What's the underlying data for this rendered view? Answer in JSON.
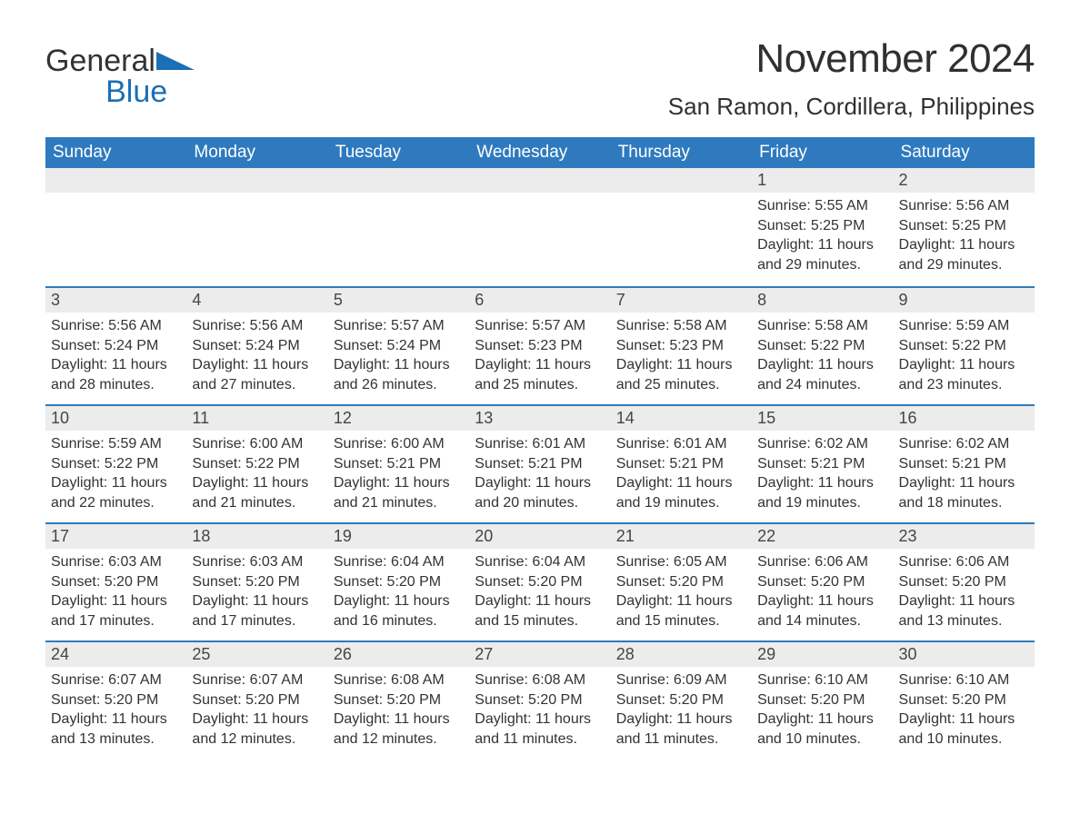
{
  "logo": {
    "word1": "General",
    "word2": "Blue",
    "accent_color": "#1a6fb5"
  },
  "title": "November 2024",
  "location": "San Ramon, Cordillera, Philippines",
  "header_bg": "#2f7abf",
  "daybar_bg": "#ececec",
  "weekdays": [
    "Sunday",
    "Monday",
    "Tuesday",
    "Wednesday",
    "Thursday",
    "Friday",
    "Saturday"
  ],
  "weeks": [
    [
      null,
      null,
      null,
      null,
      null,
      {
        "n": 1,
        "sr": "5:55 AM",
        "ss": "5:25 PM",
        "dl": "11 hours and 29 minutes."
      },
      {
        "n": 2,
        "sr": "5:56 AM",
        "ss": "5:25 PM",
        "dl": "11 hours and 29 minutes."
      }
    ],
    [
      {
        "n": 3,
        "sr": "5:56 AM",
        "ss": "5:24 PM",
        "dl": "11 hours and 28 minutes."
      },
      {
        "n": 4,
        "sr": "5:56 AM",
        "ss": "5:24 PM",
        "dl": "11 hours and 27 minutes."
      },
      {
        "n": 5,
        "sr": "5:57 AM",
        "ss": "5:24 PM",
        "dl": "11 hours and 26 minutes."
      },
      {
        "n": 6,
        "sr": "5:57 AM",
        "ss": "5:23 PM",
        "dl": "11 hours and 25 minutes."
      },
      {
        "n": 7,
        "sr": "5:58 AM",
        "ss": "5:23 PM",
        "dl": "11 hours and 25 minutes."
      },
      {
        "n": 8,
        "sr": "5:58 AM",
        "ss": "5:22 PM",
        "dl": "11 hours and 24 minutes."
      },
      {
        "n": 9,
        "sr": "5:59 AM",
        "ss": "5:22 PM",
        "dl": "11 hours and 23 minutes."
      }
    ],
    [
      {
        "n": 10,
        "sr": "5:59 AM",
        "ss": "5:22 PM",
        "dl": "11 hours and 22 minutes."
      },
      {
        "n": 11,
        "sr": "6:00 AM",
        "ss": "5:22 PM",
        "dl": "11 hours and 21 minutes."
      },
      {
        "n": 12,
        "sr": "6:00 AM",
        "ss": "5:21 PM",
        "dl": "11 hours and 21 minutes."
      },
      {
        "n": 13,
        "sr": "6:01 AM",
        "ss": "5:21 PM",
        "dl": "11 hours and 20 minutes."
      },
      {
        "n": 14,
        "sr": "6:01 AM",
        "ss": "5:21 PM",
        "dl": "11 hours and 19 minutes."
      },
      {
        "n": 15,
        "sr": "6:02 AM",
        "ss": "5:21 PM",
        "dl": "11 hours and 19 minutes."
      },
      {
        "n": 16,
        "sr": "6:02 AM",
        "ss": "5:21 PM",
        "dl": "11 hours and 18 minutes."
      }
    ],
    [
      {
        "n": 17,
        "sr": "6:03 AM",
        "ss": "5:20 PM",
        "dl": "11 hours and 17 minutes."
      },
      {
        "n": 18,
        "sr": "6:03 AM",
        "ss": "5:20 PM",
        "dl": "11 hours and 17 minutes."
      },
      {
        "n": 19,
        "sr": "6:04 AM",
        "ss": "5:20 PM",
        "dl": "11 hours and 16 minutes."
      },
      {
        "n": 20,
        "sr": "6:04 AM",
        "ss": "5:20 PM",
        "dl": "11 hours and 15 minutes."
      },
      {
        "n": 21,
        "sr": "6:05 AM",
        "ss": "5:20 PM",
        "dl": "11 hours and 15 minutes."
      },
      {
        "n": 22,
        "sr": "6:06 AM",
        "ss": "5:20 PM",
        "dl": "11 hours and 14 minutes."
      },
      {
        "n": 23,
        "sr": "6:06 AM",
        "ss": "5:20 PM",
        "dl": "11 hours and 13 minutes."
      }
    ],
    [
      {
        "n": 24,
        "sr": "6:07 AM",
        "ss": "5:20 PM",
        "dl": "11 hours and 13 minutes."
      },
      {
        "n": 25,
        "sr": "6:07 AM",
        "ss": "5:20 PM",
        "dl": "11 hours and 12 minutes."
      },
      {
        "n": 26,
        "sr": "6:08 AM",
        "ss": "5:20 PM",
        "dl": "11 hours and 12 minutes."
      },
      {
        "n": 27,
        "sr": "6:08 AM",
        "ss": "5:20 PM",
        "dl": "11 hours and 11 minutes."
      },
      {
        "n": 28,
        "sr": "6:09 AM",
        "ss": "5:20 PM",
        "dl": "11 hours and 11 minutes."
      },
      {
        "n": 29,
        "sr": "6:10 AM",
        "ss": "5:20 PM",
        "dl": "11 hours and 10 minutes."
      },
      {
        "n": 30,
        "sr": "6:10 AM",
        "ss": "5:20 PM",
        "dl": "11 hours and 10 minutes."
      }
    ]
  ],
  "labels": {
    "sunrise": "Sunrise: ",
    "sunset": "Sunset: ",
    "daylight": "Daylight: "
  }
}
